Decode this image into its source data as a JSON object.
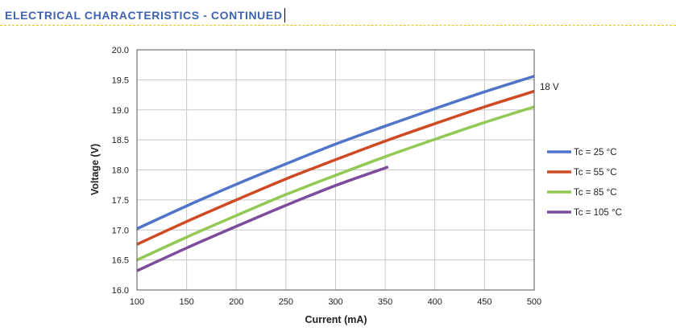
{
  "header": {
    "title": "ELECTRICAL CHARACTERISTICS - CONTINUED"
  },
  "colors": {
    "accent": "#3f63ae",
    "rule": "#e3c21c"
  },
  "chart_data": {
    "type": "line",
    "xlabel": "Current (mA)",
    "ylabel": "Voltage (V)",
    "xlim": [
      100,
      500
    ],
    "ylim": [
      16.0,
      20.0
    ],
    "xticks": [
      100,
      150,
      200,
      250,
      300,
      350,
      400,
      450,
      500
    ],
    "yticks": [
      16.0,
      16.5,
      17.0,
      17.5,
      18.0,
      18.5,
      19.0,
      19.5,
      20.0
    ],
    "ytick_labels": [
      "16.0",
      "16.5",
      "17.0",
      "17.5",
      "18.0",
      "18.5",
      "19.0",
      "19.5",
      "20.0"
    ],
    "grid": true,
    "legend_position": "right",
    "annotations": [
      {
        "text": "18 V",
        "x": 505,
        "y": 19.3
      }
    ],
    "series": [
      {
        "name": "Tc = 25 °C",
        "color": "#4f74c8",
        "x": [
          100,
          150,
          200,
          250,
          300,
          350,
          400,
          450,
          500
        ],
        "y": [
          17.02,
          17.4,
          17.76,
          18.1,
          18.43,
          18.73,
          19.02,
          19.3,
          19.56
        ]
      },
      {
        "name": "Tc = 55 °C",
        "color": "#cf4a23",
        "x": [
          100,
          150,
          200,
          250,
          300,
          350,
          400,
          450,
          500
        ],
        "y": [
          16.76,
          17.14,
          17.5,
          17.85,
          18.17,
          18.48,
          18.77,
          19.05,
          19.31
        ]
      },
      {
        "name": "Tc = 85 °C",
        "color": "#92c954",
        "x": [
          100,
          150,
          200,
          250,
          300,
          350,
          400,
          450,
          500
        ],
        "y": [
          16.5,
          16.88,
          17.24,
          17.59,
          17.91,
          18.22,
          18.51,
          18.79,
          19.05
        ]
      },
      {
        "name": "Tc = 105 °C",
        "color": "#7e4b9c",
        "x": [
          100,
          150,
          200,
          250,
          300,
          353
        ],
        "y": [
          16.32,
          16.7,
          17.06,
          17.41,
          17.74,
          18.05
        ]
      }
    ]
  }
}
